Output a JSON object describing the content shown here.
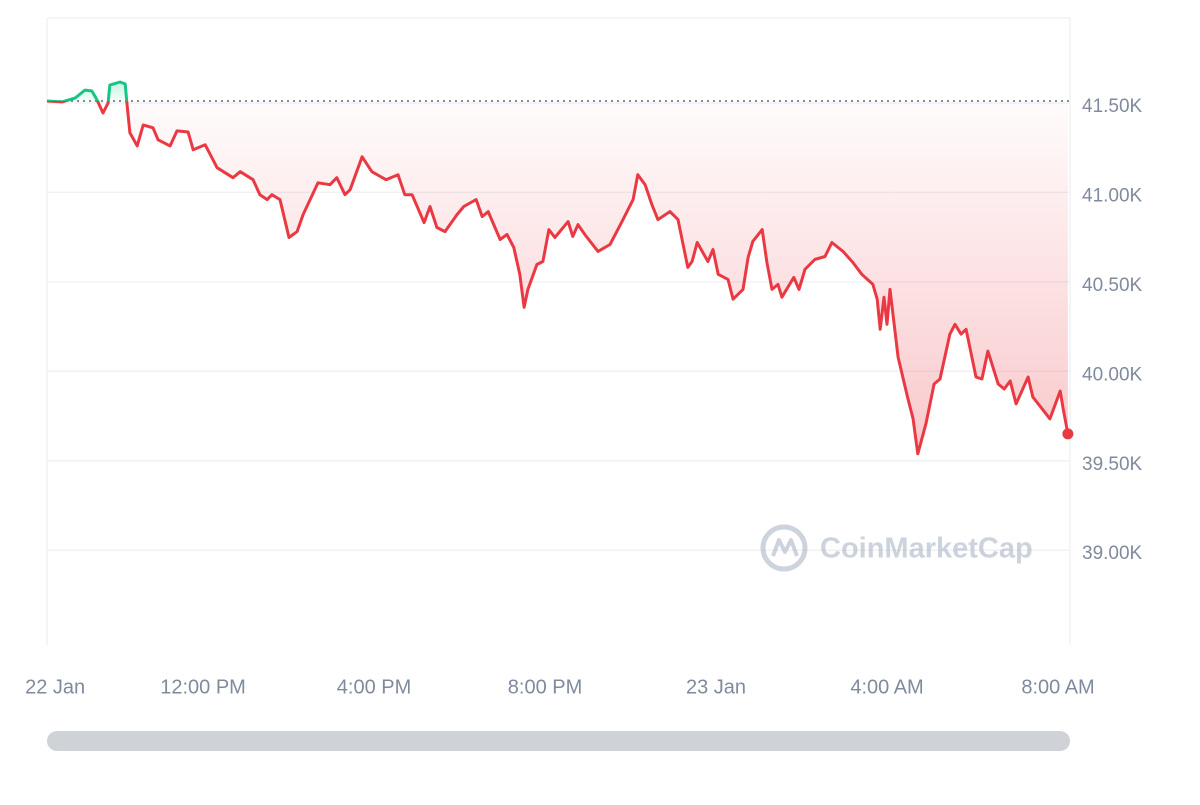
{
  "chart_data": {
    "type": "line",
    "watermark": "CoinMarketCap",
    "up_color": "#16c784",
    "down_color": "#ea3943",
    "grid": true,
    "xlim": [
      8.35,
      32.28
    ],
    "ylim": [
      38470,
      41975
    ],
    "xticks": [
      {
        "value": 8.54,
        "label": "22 Jan"
      },
      {
        "value": 12,
        "label": "12:00 PM"
      },
      {
        "value": 16,
        "label": "4:00 PM"
      },
      {
        "value": 20,
        "label": "8:00 PM"
      },
      {
        "value": 24,
        "label": "23 Jan"
      },
      {
        "value": 28,
        "label": "4:00 AM"
      },
      {
        "value": 32,
        "label": "8:00 AM"
      }
    ],
    "yticks": [
      {
        "value": 39000,
        "label": "39.00K"
      },
      {
        "value": 39500,
        "label": "39.50K"
      },
      {
        "value": 40000,
        "label": "40.00K"
      },
      {
        "value": 40500,
        "label": "40.50K"
      },
      {
        "value": 41000,
        "label": "41.00K"
      },
      {
        "value": 41500,
        "label": "41.50K"
      }
    ],
    "x": [
      8.35,
      8.7,
      9.01,
      9.24,
      9.4,
      9.52,
      9.66,
      9.78,
      9.82,
      10.06,
      10.18,
      10.22,
      10.29,
      10.46,
      10.6,
      10.83,
      10.95,
      11.23,
      11.39,
      11.65,
      11.77,
      12.05,
      12.33,
      12.7,
      12.87,
      13.17,
      13.33,
      13.5,
      13.61,
      13.8,
      14.01,
      14.2,
      14.34,
      14.69,
      14.97,
      15.13,
      15.32,
      15.44,
      15.72,
      15.95,
      16.28,
      16.56,
      16.72,
      16.89,
      17.17,
      17.31,
      17.47,
      17.66,
      17.94,
      18.1,
      18.39,
      18.53,
      18.67,
      18.95,
      19.11,
      19.27,
      19.41,
      19.51,
      19.6,
      19.81,
      19.95,
      20.09,
      20.23,
      20.54,
      20.65,
      20.77,
      20.93,
      21.24,
      21.52,
      21.8,
      22.06,
      22.17,
      22.34,
      22.5,
      22.64,
      22.92,
      23.11,
      23.23,
      23.34,
      23.44,
      23.56,
      23.81,
      23.93,
      24.05,
      24.28,
      24.4,
      24.63,
      24.75,
      24.86,
      25.08,
      25.19,
      25.31,
      25.45,
      25.54,
      25.82,
      25.94,
      26.08,
      26.31,
      26.55,
      26.71,
      26.97,
      27.2,
      27.41,
      27.67,
      27.77,
      27.84,
      27.93,
      28.0,
      28.07,
      28.26,
      28.49,
      28.61,
      28.72,
      28.91,
      29.1,
      29.24,
      29.47,
      29.59,
      29.73,
      29.85,
      30.08,
      30.22,
      30.36,
      30.6,
      30.74,
      30.88,
      31.02,
      31.3,
      31.41,
      31.72,
      31.81,
      32.05,
      32.12,
      32.23
    ],
    "values": [
      41511,
      41506,
      41528,
      41572,
      41567,
      41517,
      41444,
      41500,
      41600,
      41617,
      41606,
      41500,
      41333,
      41260,
      41377,
      41361,
      41294,
      41260,
      41344,
      41338,
      41238,
      41266,
      41138,
      41082,
      41116,
      41071,
      40987,
      40960,
      40987,
      40960,
      40748,
      40781,
      40876,
      41054,
      41043,
      41082,
      40987,
      41015,
      41199,
      41116,
      41071,
      41099,
      40987,
      40987,
      40831,
      40921,
      40804,
      40781,
      40876,
      40921,
      40960,
      40865,
      40893,
      40737,
      40765,
      40692,
      40542,
      40358,
      40458,
      40597,
      40614,
      40792,
      40748,
      40837,
      40754,
      40820,
      40765,
      40670,
      40709,
      40837,
      40960,
      41099,
      41043,
      40932,
      40848,
      40893,
      40848,
      40709,
      40581,
      40614,
      40720,
      40614,
      40681,
      40542,
      40514,
      40403,
      40458,
      40636,
      40726,
      40792,
      40609,
      40458,
      40486,
      40414,
      40525,
      40458,
      40570,
      40625,
      40642,
      40720,
      40670,
      40609,
      40542,
      40486,
      40403,
      40235,
      40414,
      40263,
      40458,
      40079,
      39845,
      39734,
      39539,
      39706,
      39929,
      39957,
      40208,
      40263,
      40208,
      40235,
      39968,
      39957,
      40113,
      39929,
      39901,
      39946,
      39818,
      39968,
      39857,
      39762,
      39734,
      39890,
      39790,
      39650
    ]
  }
}
